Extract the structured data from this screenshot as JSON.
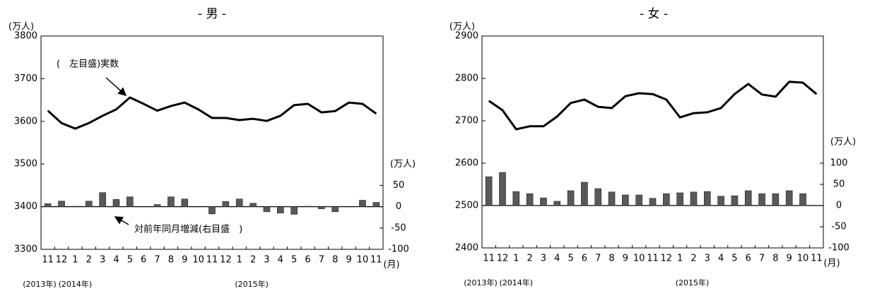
{
  "chart_data": [
    {
      "type": "combo",
      "title": "- 男 -",
      "categories": [
        "11",
        "12",
        "1",
        "2",
        "3",
        "4",
        "5",
        "6",
        "7",
        "8",
        "9",
        "10",
        "11",
        "12",
        "1",
        "2",
        "3",
        "4",
        "5",
        "6",
        "7",
        "8",
        "9",
        "10",
        "11"
      ],
      "year_labels": [
        "(2013年)",
        "(2014年)",
        "(2015年)"
      ],
      "x_unit": "(月)",
      "y_label": "(万人)",
      "y2_label": "(万人)",
      "annotations": [
        "(　左目盛)実数",
        "対前年同月増減(右目盛　)"
      ],
      "ylim": [
        3300,
        3800
      ],
      "yticks": [
        3300,
        3400,
        3500,
        3600,
        3700,
        3800
      ],
      "y2lim": [
        -100,
        400
      ],
      "y2ticks": [
        -100,
        -50,
        0,
        50
      ],
      "series": [
        {
          "type": "line",
          "color": "#000000",
          "values": [
            3625,
            3596,
            3583,
            3596,
            3613,
            3628,
            3656,
            3641,
            3625,
            3636,
            3644,
            3628,
            3608,
            3608,
            3603,
            3606,
            3601,
            3613,
            3638,
            3641,
            3621,
            3624,
            3644,
            3641,
            3618
          ]
        },
        {
          "type": "bar",
          "axis": "y2",
          "color": "#595959",
          "values": [
            7,
            13,
            1,
            13,
            33,
            17,
            23,
            0,
            5,
            23,
            18,
            0,
            -17,
            12,
            18,
            8,
            -12,
            -15,
            -18,
            1,
            -5,
            -12,
            0,
            15,
            10
          ]
        }
      ]
    },
    {
      "type": "combo",
      "title": "- 女 -",
      "categories": [
        "11",
        "12",
        "1",
        "2",
        "3",
        "4",
        "5",
        "6",
        "7",
        "8",
        "9",
        "10",
        "11",
        "12",
        "1",
        "2",
        "3",
        "4",
        "5",
        "6",
        "7",
        "8",
        "9",
        "10",
        "11"
      ],
      "year_labels": [
        "(2013年)",
        "(2014年)",
        "(2015年)"
      ],
      "x_unit": "(月)",
      "y_label": "(万人)",
      "y2_label": "(万人)",
      "ylim": [
        2400,
        2900
      ],
      "yticks": [
        2400,
        2500,
        2600,
        2700,
        2800,
        2900
      ],
      "y2lim": [
        -100,
        400
      ],
      "y2ticks": [
        -100,
        -50,
        0,
        50,
        100
      ],
      "series": [
        {
          "type": "line",
          "color": "#000000",
          "values": [
            2747,
            2725,
            2680,
            2687,
            2687,
            2710,
            2742,
            2750,
            2733,
            2730,
            2758,
            2765,
            2763,
            2750,
            2708,
            2718,
            2720,
            2730,
            2763,
            2787,
            2762,
            2757,
            2792,
            2790,
            2763
          ]
        },
        {
          "type": "bar",
          "axis": "y2",
          "color": "#595959",
          "values": [
            68,
            78,
            33,
            28,
            18,
            10,
            35,
            55,
            40,
            32,
            25,
            25,
            17,
            28,
            30,
            32,
            33,
            22,
            23,
            35,
            28,
            28,
            35,
            28,
            null
          ]
        }
      ]
    }
  ]
}
